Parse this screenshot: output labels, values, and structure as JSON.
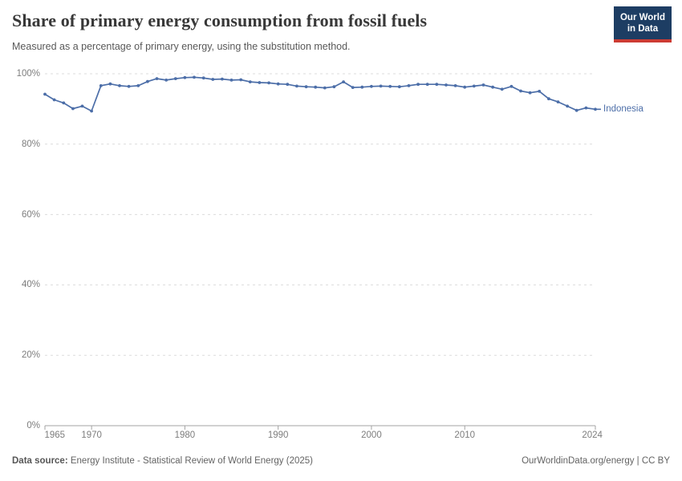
{
  "header": {
    "title": "Share of primary energy consumption from fossil fuels",
    "subtitle": "Measured as a percentage of primary energy, using the substitution method."
  },
  "logo": {
    "line1": "Our World",
    "line2": "in Data",
    "bg_color": "#1d3d63",
    "accent_color": "#cc3b33"
  },
  "footer": {
    "data_source_label": "Data source:",
    "data_source_text": " Energy Institute - Statistical Review of World Energy (2025)",
    "attribution": "OurWorldinData.org/energy | CC BY"
  },
  "chart_data": {
    "type": "line",
    "title": "Share of primary energy consumption from fossil fuels",
    "subtitle": "Measured as a percentage of primary energy, using the substitution method.",
    "xlabel": "",
    "ylabel": "",
    "xlim": [
      1965,
      2024
    ],
    "ylim": [
      0,
      100
    ],
    "xticks": [
      1965,
      1970,
      1980,
      1990,
      2000,
      2010,
      2024
    ],
    "yticks": [
      0,
      20,
      40,
      60,
      80,
      100
    ],
    "ytick_format": "{}%",
    "grid": "horizontal-dashed",
    "legend": "line-end-label",
    "colors": {
      "line": "#4c6ea8",
      "gridline": "#dcdcdc",
      "axis": "#a3a3a3",
      "tick_label": "#7d7d7d"
    },
    "series": [
      {
        "name": "Indonesia",
        "color": "#4c6ea8",
        "x": [
          1965,
          1966,
          1967,
          1968,
          1969,
          1970,
          1971,
          1972,
          1973,
          1974,
          1975,
          1976,
          1977,
          1978,
          1979,
          1980,
          1981,
          1982,
          1983,
          1984,
          1985,
          1986,
          1987,
          1988,
          1989,
          1990,
          1991,
          1992,
          1993,
          1994,
          1995,
          1996,
          1997,
          1998,
          1999,
          2000,
          2001,
          2002,
          2003,
          2004,
          2005,
          2006,
          2007,
          2008,
          2009,
          2010,
          2011,
          2012,
          2013,
          2014,
          2015,
          2016,
          2017,
          2018,
          2019,
          2020,
          2021,
          2022,
          2023,
          2024
        ],
        "values": [
          94.2,
          92.6,
          91.7,
          90.1,
          90.8,
          89.4,
          96.6,
          97.1,
          96.6,
          96.4,
          96.6,
          97.8,
          98.6,
          98.2,
          98.6,
          98.9,
          99.0,
          98.8,
          98.4,
          98.5,
          98.2,
          98.3,
          97.7,
          97.5,
          97.4,
          97.1,
          97.0,
          96.5,
          96.3,
          96.2,
          96.0,
          96.3,
          97.7,
          96.1,
          96.2,
          96.4,
          96.5,
          96.4,
          96.3,
          96.6,
          97.0,
          97.0,
          97.0,
          96.8,
          96.6,
          96.2,
          96.5,
          96.8,
          96.2,
          95.6,
          96.4,
          95.1,
          94.6,
          95.0,
          92.9,
          92.0,
          90.8,
          89.6,
          90.3,
          89.9
        ]
      }
    ]
  }
}
